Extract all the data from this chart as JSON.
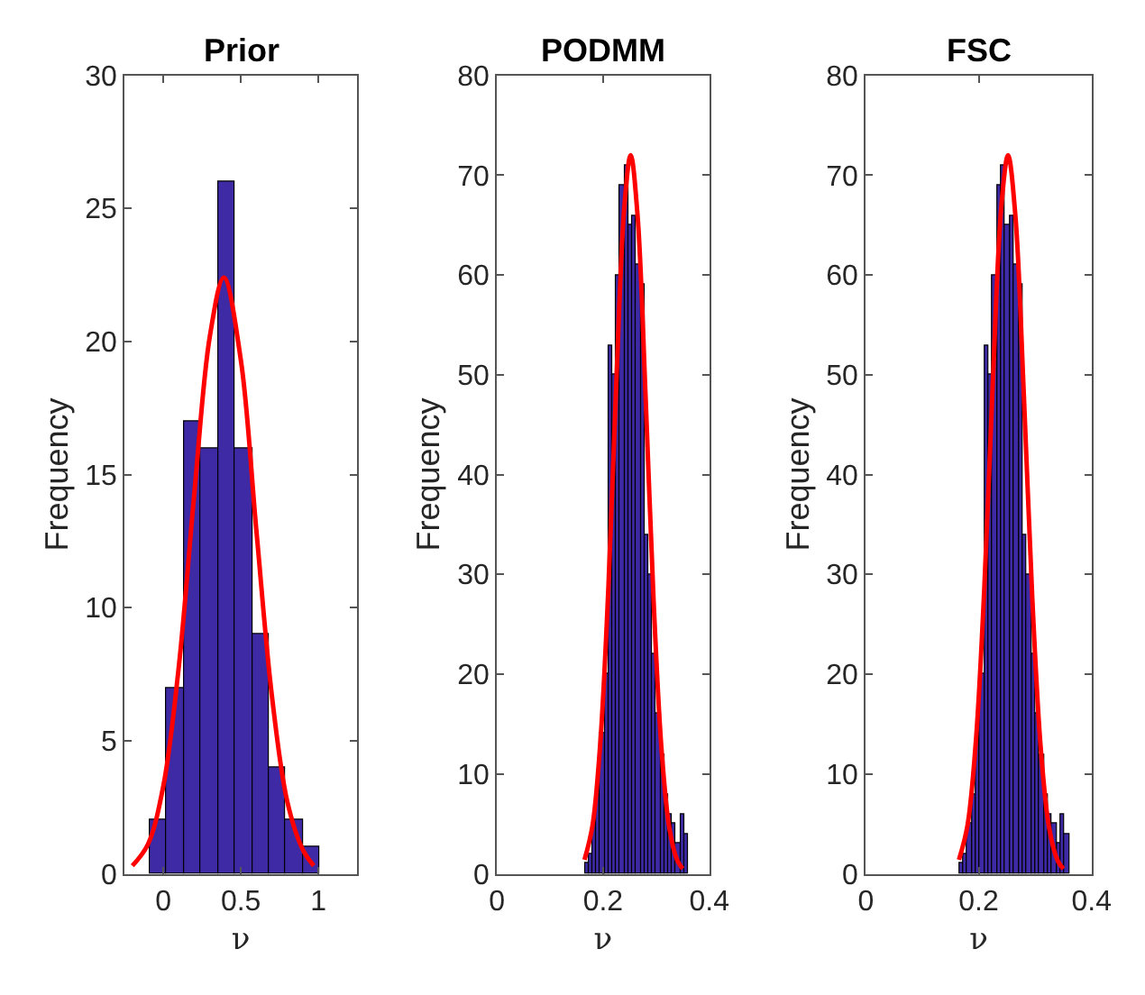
{
  "chart_data": [
    {
      "type": "histogram",
      "title": "Prior",
      "xlabel": "ν",
      "ylabel": "Frequency",
      "color": "#3d2aa4",
      "bins": [
        -0.09,
        0.02,
        0.13,
        0.24,
        0.35,
        0.46,
        0.57,
        0.68,
        0.79,
        0.9,
        1.01
      ],
      "values": [
        2,
        7,
        17,
        16,
        26,
        16,
        9,
        4,
        2,
        1
      ],
      "series": [
        {
          "type": "line",
          "color": "#ff0000",
          "x": [
            -0.2,
            -0.1,
            0,
            0.1,
            0.2,
            0.3,
            0.39,
            0.5,
            0.6,
            0.7,
            0.8,
            0.9,
            0.97
          ],
          "values": [
            0.3,
            1.1,
            3.3,
            7.8,
            14.3,
            20.2,
            22.4,
            19.3,
            12.9,
            6.7,
            2.7,
            0.9,
            0.3
          ]
        }
      ],
      "xlim": [
        -0.25,
        1.25
      ],
      "xticks": [
        0,
        0.5,
        1
      ],
      "ylim": [
        0,
        30
      ],
      "yticks": [
        0,
        5,
        10,
        15,
        20,
        25,
        30
      ]
    },
    {
      "type": "histogram",
      "title": "PODMM",
      "xlabel": "ν",
      "ylabel": "Frequency",
      "color": "#3d2aa4",
      "bins": [
        0.165,
        0.1725,
        0.18,
        0.1875,
        0.195,
        0.2025,
        0.21,
        0.2175,
        0.225,
        0.2325,
        0.24,
        0.2475,
        0.255,
        0.2625,
        0.27,
        0.2775,
        0.285,
        0.2925,
        0.3,
        0.3075,
        0.315,
        0.3225,
        0.33,
        0.3375,
        0.345,
        0.3525,
        0.36
      ],
      "values": [
        1,
        2,
        5,
        8,
        14,
        20,
        53,
        50,
        60,
        69,
        71,
        65,
        66,
        61,
        59,
        34,
        30,
        22,
        16,
        12,
        8,
        6,
        5,
        3,
        6,
        4
      ],
      "series": [
        {
          "type": "line",
          "color": "#ff0000",
          "x": [
            0.165,
            0.18,
            0.195,
            0.21,
            0.225,
            0.24,
            0.252,
            0.265,
            0.28,
            0.295,
            0.31,
            0.325,
            0.34,
            0.35
          ],
          "values": [
            1.4,
            4.8,
            13.3,
            28.7,
            49.3,
            66.8,
            72,
            65.9,
            47.9,
            27.5,
            12.5,
            4.5,
            1.3,
            0.5
          ]
        }
      ],
      "xlim": [
        0,
        0.4
      ],
      "xticks": [
        0,
        0.2,
        0.4
      ],
      "ylim": [
        0,
        80
      ],
      "yticks": [
        0,
        10,
        20,
        30,
        40,
        50,
        60,
        70,
        80
      ]
    },
    {
      "type": "histogram",
      "title": "FSC",
      "xlabel": "ν",
      "ylabel": "Frequency",
      "color": "#3d2aa4",
      "bins": [
        0.165,
        0.1725,
        0.18,
        0.1875,
        0.195,
        0.2025,
        0.21,
        0.2175,
        0.225,
        0.2325,
        0.24,
        0.2475,
        0.255,
        0.2625,
        0.27,
        0.2775,
        0.285,
        0.2925,
        0.3,
        0.3075,
        0.315,
        0.3225,
        0.33,
        0.3375,
        0.345,
        0.3525,
        0.36
      ],
      "values": [
        1,
        2,
        5,
        8,
        14,
        20,
        53,
        50,
        60,
        69,
        71,
        65,
        66,
        61,
        59,
        34,
        30,
        22,
        16,
        12,
        8,
        6,
        5,
        3,
        6,
        4
      ],
      "series": [
        {
          "type": "line",
          "color": "#ff0000",
          "x": [
            0.165,
            0.18,
            0.195,
            0.21,
            0.225,
            0.24,
            0.252,
            0.265,
            0.28,
            0.295,
            0.31,
            0.325,
            0.34,
            0.35
          ],
          "values": [
            1.4,
            4.8,
            13.3,
            28.7,
            49.3,
            66.8,
            72,
            65.9,
            47.9,
            27.5,
            12.5,
            4.5,
            1.3,
            0.5
          ]
        }
      ],
      "xlim": [
        0,
        0.4
      ],
      "xticks": [
        0,
        0.2,
        0.4
      ],
      "ylim": [
        0,
        80
      ],
      "yticks": [
        0,
        10,
        20,
        30,
        40,
        50,
        60,
        70,
        80
      ]
    }
  ]
}
